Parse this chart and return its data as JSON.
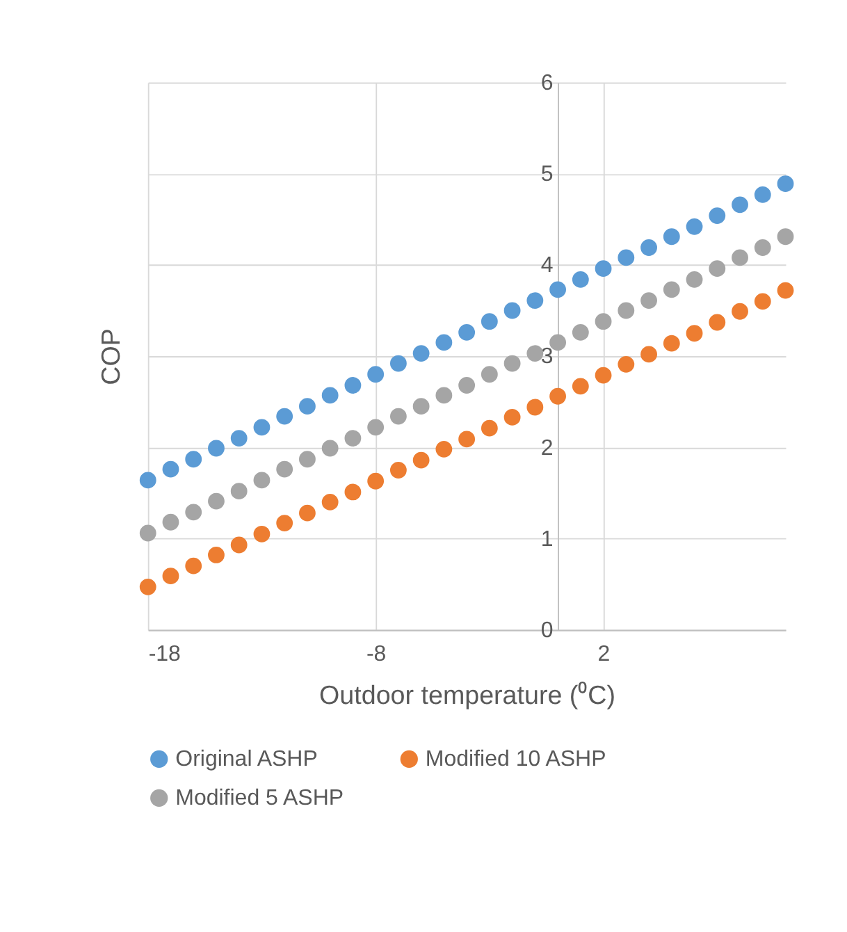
{
  "chart_data": {
    "type": "scatter",
    "xlabel": "Outdoor temperature (⁰C)",
    "ylabel": "COP",
    "x": [
      -18,
      -17,
      -16,
      -15,
      -14,
      -13,
      -12,
      -11,
      -10,
      -9,
      -8,
      -7,
      -6,
      -5,
      -4,
      -3,
      -2,
      -1,
      0,
      1,
      2,
      3,
      4,
      5,
      6,
      7,
      8,
      9,
      10
    ],
    "series": [
      {
        "name": "Original ASHP",
        "color": "#5b9bd5",
        "values": [
          1.64,
          1.76,
          1.87,
          1.99,
          2.1,
          2.22,
          2.34,
          2.45,
          2.57,
          2.68,
          2.8,
          2.92,
          3.03,
          3.15,
          3.26,
          3.38,
          3.5,
          3.61,
          3.73,
          3.84,
          3.96,
          4.08,
          4.19,
          4.31,
          4.42,
          4.54,
          4.66,
          4.77,
          4.89
        ]
      },
      {
        "name": "Modified 10 ASHP",
        "color": "#ed7d31",
        "values": [
          0.47,
          0.59,
          0.7,
          0.82,
          0.93,
          1.05,
          1.17,
          1.28,
          1.4,
          1.51,
          1.63,
          1.75,
          1.86,
          1.98,
          2.09,
          2.21,
          2.33,
          2.44,
          2.56,
          2.67,
          2.79,
          2.91,
          3.02,
          3.14,
          3.25,
          3.37,
          3.49,
          3.6,
          3.72
        ]
      },
      {
        "name": "Modified 5 ASHP",
        "color": "#a5a5a5",
        "values": [
          1.06,
          1.18,
          1.29,
          1.41,
          1.52,
          1.64,
          1.76,
          1.87,
          1.99,
          2.1,
          2.22,
          2.34,
          2.45,
          2.57,
          2.68,
          2.8,
          2.92,
          3.03,
          3.15,
          3.26,
          3.38,
          3.5,
          3.61,
          3.73,
          3.84,
          3.96,
          4.08,
          4.19,
          4.31
        ]
      }
    ],
    "xlim": [
      -18,
      10
    ],
    "xticks": [
      -18,
      -8,
      2
    ],
    "ylim": [
      0,
      6
    ],
    "yticks": [
      0,
      1,
      2,
      3,
      4,
      5,
      6
    ],
    "grid": true,
    "legend": "bottom",
    "marker": "circle"
  }
}
